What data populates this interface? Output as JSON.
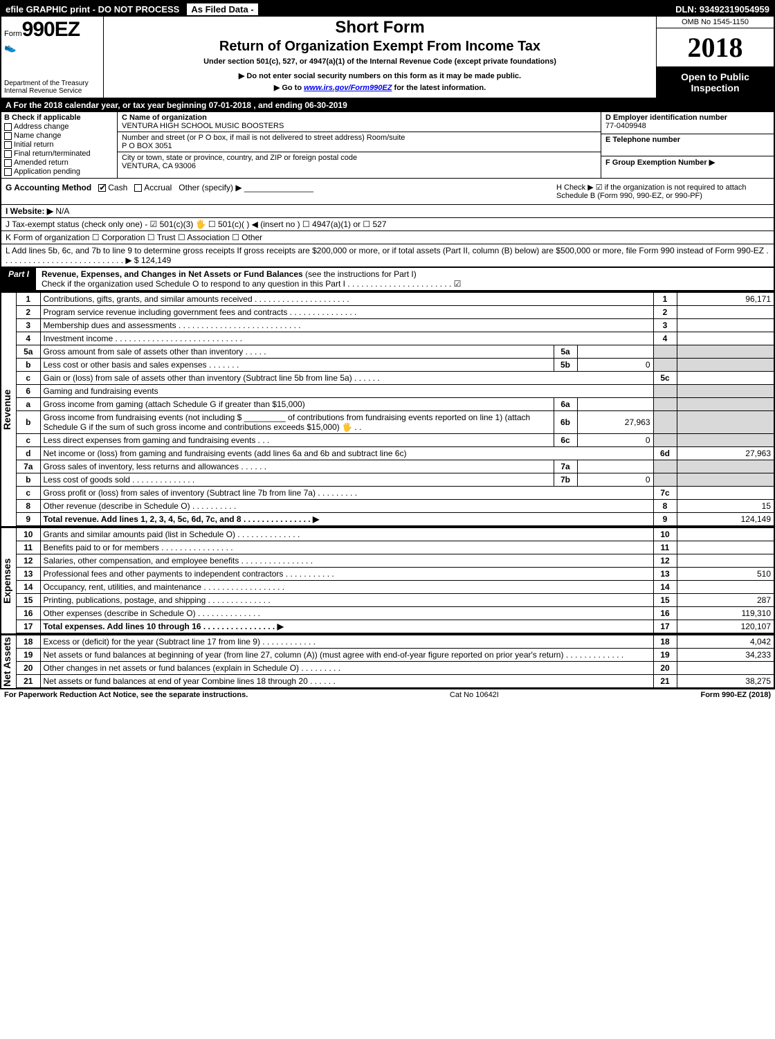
{
  "topbar": {
    "efile": "efile GRAPHIC print - DO NOT PROCESS",
    "asfiled": "As Filed Data -",
    "dln_label": "DLN:",
    "dln": "93492319054959"
  },
  "header": {
    "form_prefix": "Form",
    "form_no": "990EZ",
    "dept": "Department of the Treasury",
    "irs": "Internal Revenue Service",
    "short_form": "Short Form",
    "title": "Return of Organization Exempt From Income Tax",
    "under": "Under section 501(c), 527, or 4947(a)(1) of the Internal Revenue Code (except private foundations)",
    "arrow1": "▶ Do not enter social security numbers on this form as it may be made public.",
    "arrow2_pre": "▶ Go to ",
    "arrow2_link": "www.irs.gov/Form990EZ",
    "arrow2_post": " for the latest information.",
    "omb": "OMB No 1545-1150",
    "year": "2018",
    "open": "Open to Public Inspection"
  },
  "rowA": "A  For the 2018 calendar year, or tax year beginning 07-01-2018             , and ending 06-30-2019",
  "B": {
    "label": "B  Check if applicable",
    "items": [
      "Address change",
      "Name change",
      "Initial return",
      "Final return/terminated",
      "Amended return",
      "Application pending"
    ]
  },
  "C": {
    "name_lbl": "C Name of organization",
    "name": "VENTURA HIGH SCHOOL MUSIC BOOSTERS",
    "addr_lbl": "Number and street (or P O box, if mail is not delivered to street address)   Room/suite",
    "addr": "P O BOX 3051",
    "city_lbl": "City or town, state or province, country, and ZIP or foreign postal code",
    "city": "VENTURA, CA  93006"
  },
  "D": {
    "lbl": "D Employer identification number",
    "val": "77-0409948"
  },
  "E": {
    "lbl": "E Telephone number",
    "val": ""
  },
  "F": {
    "lbl": "F Group Exemption Number  ▶",
    "val": ""
  },
  "G": {
    "lbl": "G Accounting Method",
    "cash": "Cash",
    "accrual": "Accrual",
    "other": "Other (specify) ▶"
  },
  "H": {
    "text": "H  Check ▶  ☑  if the organization is not required to attach Schedule B (Form 990, 990-EZ, or 990-PF)"
  },
  "I": {
    "lbl": "I Website: ▶",
    "val": "N/A"
  },
  "J": "J Tax-exempt status (check only one) - ☑ 501(c)(3) 🖐 ☐ 501(c)( ) ◀ (insert no ) ☐ 4947(a)(1) or ☐ 527",
  "K": "K Form of organization    ☐ Corporation  ☐ Trust  ☐ Association  ☐ Other",
  "L": {
    "text": "L Add lines 5b, 6c, and 7b to line 9 to determine gross receipts If gross receipts are $200,000 or more, or if total assets (Part II, column (B) below) are $500,000 or more, file Form 990 instead of Form 990-EZ  .  .  .  .  .  .  .  .  .  .  .  .  .  .  .  .  .  .  .  .  .  .  .  .  .  .  .  ▶ $",
    "val": "124,149"
  },
  "part1": {
    "tab": "Part I",
    "title": "Revenue, Expenses, and Changes in Net Assets or Fund Balances",
    "title_paren": "(see the instructions for Part I)",
    "sub": "Check if the organization used Schedule O to respond to any question in this Part I .  .  .  .  .  .  .  .  .  .  .  .  .  .  .  .  .  .  .  .  .  .  .  ☑"
  },
  "sections": {
    "revenue": "Revenue",
    "expenses": "Expenses",
    "netassets": "Net Assets"
  },
  "lines": {
    "1": {
      "no": "1",
      "desc": "Contributions, gifts, grants, and similar amounts received .  .  .  .  .  .  .  .  .  .  .  .  .  .  .  .  .  .  .  .  .",
      "ln": "1",
      "val": "96,171"
    },
    "2": {
      "no": "2",
      "desc": "Program service revenue including government fees and contracts .  .  .  .  .  .  .  .  .  .  .  .  .  .  .",
      "ln": "2",
      "val": ""
    },
    "3": {
      "no": "3",
      "desc": "Membership dues and assessments .  .  .  .  .  .  .  .  .  .  .  .  .  .  .  .  .  .  .  .  .  .  .  .  .  .  .",
      "ln": "3",
      "val": ""
    },
    "4": {
      "no": "4",
      "desc": "Investment income .  .  .  .  .  .  .  .  .  .  .  .  .  .  .  .  .  .  .  .  .  .  .  .  .  .  .  .",
      "ln": "4",
      "val": ""
    },
    "5a": {
      "no": "5a",
      "desc": "Gross amount from sale of assets other than inventory .  .  .  .  .",
      "inner_ln": "5a",
      "inner_val": ""
    },
    "5b": {
      "no": "b",
      "desc": "Less cost or other basis and sales expenses .  .  .  .  .  .  .",
      "inner_ln": "5b",
      "inner_val": "0"
    },
    "5c": {
      "no": "c",
      "desc": "Gain or (loss) from sale of assets other than inventory (Subtract line 5b from line 5a) .  .  .  .  .  .",
      "ln": "5c",
      "val": ""
    },
    "6": {
      "no": "6",
      "desc": "Gaming and fundraising events"
    },
    "6a": {
      "no": "a",
      "desc": "Gross income from gaming (attach Schedule G if greater than $15,000)",
      "inner_ln": "6a",
      "inner_val": ""
    },
    "6b": {
      "no": "b",
      "desc": "Gross income from fundraising events (not including $ _________ of contributions from fundraising events reported on line 1) (attach Schedule G if the sum of such gross income and contributions exceeds $15,000) 🖐 .  .",
      "inner_ln": "6b",
      "inner_val": "27,963"
    },
    "6c": {
      "no": "c",
      "desc": "Less direct expenses from gaming and fundraising events    .  .  .",
      "inner_ln": "6c",
      "inner_val": "0"
    },
    "6d": {
      "no": "d",
      "desc": "Net income or (loss) from gaming and fundraising events (add lines 6a and 6b and subtract line 6c)",
      "ln": "6d",
      "val": "27,963"
    },
    "7a": {
      "no": "7a",
      "desc": "Gross sales of inventory, less returns and allowances .  .  .  .  .  .",
      "inner_ln": "7a",
      "inner_val": ""
    },
    "7b": {
      "no": "b",
      "desc": "Less cost of goods sold         .  .  .  .  .  .  .  .  .  .  .  .  .  .",
      "inner_ln": "7b",
      "inner_val": "0"
    },
    "7c": {
      "no": "c",
      "desc": "Gross profit or (loss) from sales of inventory (Subtract line 7b from line 7a) .  .  .  .  .  .  .  .  .",
      "ln": "7c",
      "val": ""
    },
    "8": {
      "no": "8",
      "desc": "Other revenue (describe in Schedule O)                     .  .  .  .  .  .  .  .  .  .",
      "ln": "8",
      "val": "15"
    },
    "9": {
      "no": "9",
      "desc": "Total revenue. Add lines 1, 2, 3, 4, 5c, 6d, 7c, and 8  .  .  .  .  .  .  .  .  .  .  .  .  .  .  .  ▶",
      "ln": "9",
      "val": "124,149",
      "bold": true
    },
    "10": {
      "no": "10",
      "desc": "Grants and similar amounts paid (list in Schedule O)        .  .  .  .  .  .  .  .  .  .  .  .  .  .",
      "ln": "10",
      "val": ""
    },
    "11": {
      "no": "11",
      "desc": "Benefits paid to or for members                  .  .  .  .  .  .  .  .  .  .  .  .  .  .  .  .",
      "ln": "11",
      "val": ""
    },
    "12": {
      "no": "12",
      "desc": "Salaries, other compensation, and employee benefits .  .  .  .  .  .  .  .  .  .  .  .  .  .  .  .",
      "ln": "12",
      "val": ""
    },
    "13": {
      "no": "13",
      "desc": "Professional fees and other payments to independent contractors .  .  .  .  .  .  .  .  .  .  .",
      "ln": "13",
      "val": "510"
    },
    "14": {
      "no": "14",
      "desc": "Occupancy, rent, utilities, and maintenance .  .  .  .  .  .  .  .  .  .  .  .  .  .  .  .  .  .",
      "ln": "14",
      "val": ""
    },
    "15": {
      "no": "15",
      "desc": "Printing, publications, postage, and shipping            .  .  .  .  .  .  .  .  .  .  .  .  .  .",
      "ln": "15",
      "val": "287"
    },
    "16": {
      "no": "16",
      "desc": "Other expenses (describe in Schedule O)              .  .  .  .  .  .  .  .  .  .  .  .  .  .",
      "ln": "16",
      "val": "119,310"
    },
    "17": {
      "no": "17",
      "desc": "Total expenses. Add lines 10 through 16       .  .  .  .  .  .  .  .  .  .  .  .  .  .  .  .  ▶",
      "ln": "17",
      "val": "120,107",
      "bold": true
    },
    "18": {
      "no": "18",
      "desc": "Excess or (deficit) for the year (Subtract line 17 from line 9)     .  .  .  .  .  .  .  .  .  .  .  .",
      "ln": "18",
      "val": "4,042"
    },
    "19": {
      "no": "19",
      "desc": "Net assets or fund balances at beginning of year (from line 27, column (A)) (must agree with end-of-year figure reported on prior year's return)             .  .  .  .  .  .  .  .  .  .  .  .  .",
      "ln": "19",
      "val": "34,233"
    },
    "20": {
      "no": "20",
      "desc": "Other changes in net assets or fund balances (explain in Schedule O)    .  .  .  .  .  .  .  .  .",
      "ln": "20",
      "val": ""
    },
    "21": {
      "no": "21",
      "desc": "Net assets or fund balances at end of year Combine lines 18 through 20         .  .  .  .  .  .",
      "ln": "21",
      "val": "38,275"
    }
  },
  "footer": {
    "left": "For Paperwork Reduction Act Notice, see the separate instructions.",
    "mid": "Cat No 10642I",
    "right": "Form 990-EZ (2018)"
  },
  "colors": {
    "black": "#000000",
    "white": "#ffffff",
    "shade": "#d9d9d9"
  }
}
